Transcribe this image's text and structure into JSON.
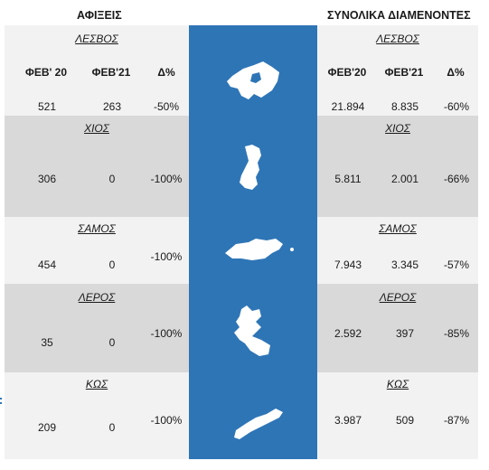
{
  "headers": {
    "arrivals": "ΑΦΙΞΕΙΣ",
    "overnight": "ΣΥΝΟΛΙΚΑ ΔΙΑΜΕΝΟΝΤΕΣ"
  },
  "columns": {
    "feb20_left": "ΦΕΒ' 20",
    "feb21": "ΦΕΒ'21",
    "delta": "Δ%",
    "feb20_right": "ΦΕΒ'20"
  },
  "colors": {
    "panel_blue": "#2e75b6",
    "band_gray": "#d9d9d9",
    "band_light": "#f2f2f2"
  },
  "islands": [
    {
      "name": "ΛΕΣΒΟΣ",
      "arr20": "521",
      "arr21": "263",
      "arr_delta": "-50%",
      "ov20": "21.894",
      "ov21": "8.835",
      "ov_delta": "-60%"
    },
    {
      "name": "ΧΙΟΣ",
      "arr20": "306",
      "arr21": "0",
      "arr_delta": "-100%",
      "ov20": "5.811",
      "ov21": "2.001",
      "ov_delta": "-66%"
    },
    {
      "name": "ΣΑΜΟΣ",
      "arr20": "454",
      "arr21": "0",
      "arr_delta": "-100%",
      "ov20": "7.943",
      "ov21": "3.345",
      "ov_delta": "-57%"
    },
    {
      "name": "ΛΕΡΟΣ",
      "arr20": "35",
      "arr21": "0",
      "arr_delta": "-100%",
      "ov20": "2.592",
      "ov21": "397",
      "ov_delta": "-85%"
    },
    {
      "name": "ΚΩΣ",
      "arr20": "209",
      "arr21": "0",
      "arr_delta": "-100%",
      "ov20": "3.987",
      "ov21": "509",
      "ov_delta": "-87%"
    }
  ]
}
